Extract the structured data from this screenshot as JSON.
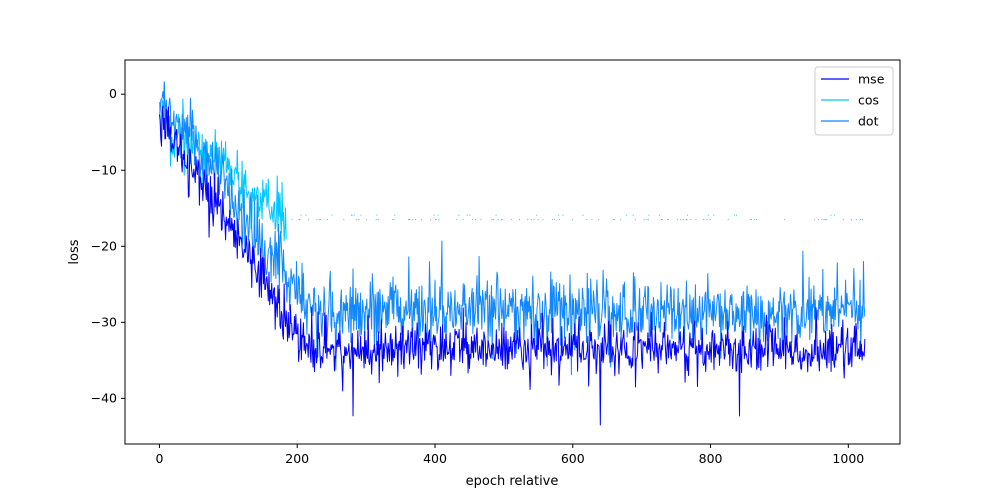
{
  "chart_data": {
    "type": "line",
    "title": "",
    "xlabel": "epoch relative",
    "ylabel": "loss",
    "xlim": [
      -50,
      1075
    ],
    "ylim": [
      -46,
      4.5
    ],
    "grid": false,
    "legend_position": "top-right",
    "x_ticks": [
      0,
      200,
      400,
      600,
      800,
      1000
    ],
    "y_ticks": [
      0,
      -10,
      -20,
      -30,
      -40
    ],
    "n_points": 1025,
    "series": [
      {
        "name": "mse",
        "color": "#0000ff",
        "start": -3,
        "plateau_start_x": 215,
        "plateau": -33.5,
        "noise": 1.6,
        "min_shown": -43.5,
        "min_x": 640,
        "other_min": -42.3,
        "other_min_x": 281
      },
      {
        "name": "cos",
        "color": "#00c8ff",
        "start": -3,
        "plateau_start_x": 185,
        "plateau": -16.5,
        "noise": 2.0,
        "pattern": "sparse-dashes-after-plateau"
      },
      {
        "name": "dot",
        "color": "#1188ff",
        "start": 0,
        "plateau_start_x": 220,
        "plateau": -28.5,
        "noise": 2.2,
        "max_spike": -19.3,
        "max_spike_x": 410
      }
    ]
  }
}
